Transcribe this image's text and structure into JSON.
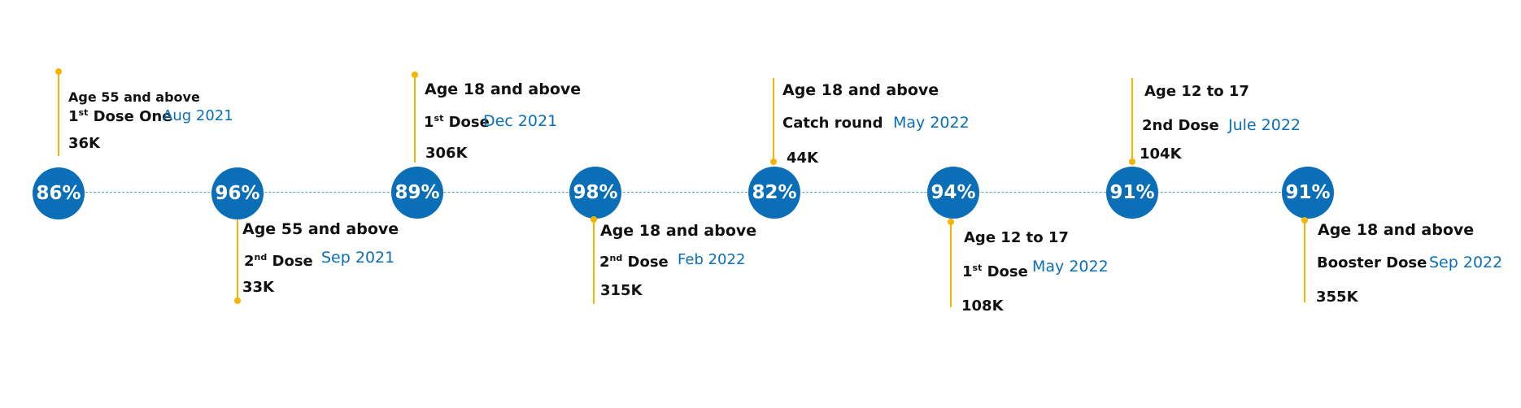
{
  "colors": {
    "node": "#0b6fb8",
    "connector": "#f4b400",
    "date_text": "#0b6fb8",
    "timeline": "#5a9fd1"
  },
  "milestones": [
    {
      "pct": "86%",
      "age": "Age 55 and above",
      "dose_num": "1",
      "dose_sup": "st",
      "dose_rest": " Dose One",
      "date": "Aug 2021",
      "count": "36K"
    },
    {
      "pct": "96%",
      "age": "Age 55 and above",
      "dose_num": "2",
      "dose_sup": "nd",
      "dose_rest": " Dose",
      "date": "Sep 2021",
      "count": "33K"
    },
    {
      "pct": "89%",
      "age": "Age 18 and above",
      "dose_num": "1",
      "dose_sup": "st",
      "dose_rest": " Dose",
      "date": "Dec 2021",
      "count": "306K"
    },
    {
      "pct": "98%",
      "age": "Age 18 and above",
      "dose_num": "2",
      "dose_sup": "nd",
      "dose_rest": " Dose",
      "date": "Feb 2022",
      "count": "315K"
    },
    {
      "pct": "82%",
      "age": "Age 18 and above",
      "dose_label": "Catch round",
      "date": "May 2022",
      "count": "44K"
    },
    {
      "pct": "94%",
      "age": "Age 12 to 17",
      "dose_num": "1",
      "dose_sup": "st",
      "dose_rest": "  Dose",
      "date": "May 2022",
      "count": "108K"
    },
    {
      "pct": "91%",
      "age": "Age 12 to 17",
      "dose_label": "2nd  Dose",
      "date": "Jule 2022",
      "count": "104K"
    },
    {
      "pct": "91%",
      "age": "Age 18 and above",
      "dose_label": "Booster Dose",
      "date": "Sep 2022",
      "count": "355K"
    }
  ]
}
